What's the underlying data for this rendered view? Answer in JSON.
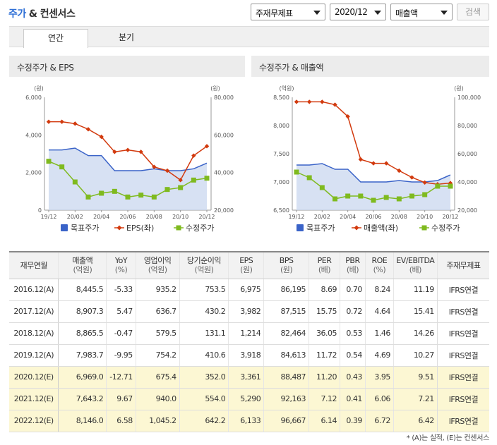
{
  "header": {
    "title_main": "주가",
    "title_rest": "& 컨센서스",
    "select_type": "주재무제표",
    "select_period": "2020/12",
    "select_metric": "매출액",
    "search_label": "검색"
  },
  "tabs": [
    {
      "label": "연간"
    },
    {
      "label": "분기"
    }
  ],
  "chart1": {
    "title": "수정주가 & EPS",
    "unit_left": "(원)",
    "unit_right": "(원)",
    "legend": [
      "목표주가",
      "EPS(좌)",
      "수정주가"
    ]
  },
  "chart2": {
    "title": "수정주가 & 매출액",
    "unit_left": "(억원)",
    "unit_right": "(원)",
    "legend": [
      "목표주가",
      "매출액(좌)",
      "수정주가"
    ]
  },
  "colors": {
    "target": "#3a63c8",
    "target_fill": "#c9d7ef",
    "eps": "#d23a0e",
    "price": "#7fba1f"
  },
  "chart_data": [
    {
      "type": "line",
      "title": "수정주가 & EPS",
      "x": [
        "19/12",
        "20/01",
        "20/02",
        "20/03",
        "20/04",
        "20/05",
        "20/06",
        "20/07",
        "20/08",
        "20/09",
        "20/10",
        "20/11",
        "20/12"
      ],
      "x_ticks": [
        "19/12",
        "20/02",
        "20/04",
        "20/06",
        "20/08",
        "20/10",
        "20/12"
      ],
      "y_left": {
        "unit": "(원)",
        "ticks": [
          "6,000",
          "4,000",
          "2,000",
          "0"
        ],
        "range": [
          0,
          6000
        ]
      },
      "y_right": {
        "unit": "(원)",
        "ticks": [
          "80,000",
          "60,000",
          "40,000",
          "20,000"
        ],
        "range": [
          20000,
          80000
        ]
      },
      "series": [
        {
          "name": "목표주가",
          "axis": "right",
          "values": [
            52000,
            52000,
            53000,
            49000,
            49000,
            41000,
            41000,
            41000,
            42000,
            41000,
            41000,
            42000,
            45000
          ]
        },
        {
          "name": "EPS(좌)",
          "axis": "left",
          "values": [
            4700,
            4700,
            4600,
            4300,
            3900,
            3100,
            3200,
            3100,
            2300,
            2100,
            1600,
            2900,
            3400
          ]
        },
        {
          "name": "수정주가",
          "axis": "right",
          "values": [
            46000,
            43000,
            35000,
            27000,
            29000,
            30000,
            27000,
            28000,
            27000,
            31000,
            32000,
            36000,
            37000
          ]
        }
      ],
      "legend_position": "bottom"
    },
    {
      "type": "line",
      "title": "수정주가 & 매출액",
      "x": [
        "19/12",
        "20/01",
        "20/02",
        "20/03",
        "20/04",
        "20/05",
        "20/06",
        "20/07",
        "20/08",
        "20/09",
        "20/10",
        "20/11",
        "20/12"
      ],
      "x_ticks": [
        "19/12",
        "20/02",
        "20/04",
        "20/06",
        "20/08",
        "20/10",
        "20/12"
      ],
      "y_left": {
        "unit": "(억원)",
        "ticks": [
          "8,500",
          "8,000",
          "7,500",
          "7,000",
          "6,500"
        ],
        "range": [
          6500,
          8500
        ]
      },
      "y_right": {
        "unit": "(원)",
        "ticks": [
          "100,000",
          "80,000",
          "60,000",
          "40,000",
          "20,000"
        ],
        "range": [
          20000,
          100000
        ]
      },
      "series": [
        {
          "name": "목표주가",
          "axis": "right",
          "values": [
            52000,
            52000,
            53000,
            49000,
            49000,
            40000,
            40000,
            40000,
            41000,
            40000,
            40000,
            41000,
            45000
          ]
        },
        {
          "name": "매출액(좌)",
          "axis": "left",
          "values": [
            8420,
            8420,
            8420,
            8370,
            8160,
            7400,
            7330,
            7330,
            7200,
            7080,
            6990,
            6960,
            6980
          ]
        },
        {
          "name": "수정주가",
          "axis": "right",
          "values": [
            47000,
            43000,
            36000,
            28000,
            30000,
            30000,
            27000,
            29000,
            28000,
            30000,
            31000,
            37000,
            37000
          ]
        }
      ],
      "legend_position": "bottom"
    }
  ],
  "table": {
    "headers": [
      {
        "label": "재무연월",
        "unit": ""
      },
      {
        "label": "매출액",
        "unit": "(억원)"
      },
      {
        "label": "YoY",
        "unit": "(%)"
      },
      {
        "label": "영업이익",
        "unit": "(억원)"
      },
      {
        "label": "당기순이익",
        "unit": "(억원)"
      },
      {
        "label": "EPS",
        "unit": "(원)"
      },
      {
        "label": "BPS",
        "unit": "(원)"
      },
      {
        "label": "PER",
        "unit": "(배)"
      },
      {
        "label": "PBR",
        "unit": "(배)"
      },
      {
        "label": "ROE",
        "unit": "(%)"
      },
      {
        "label": "EV/EBITDA",
        "unit": "(배)"
      },
      {
        "label": "주재무제표",
        "unit": ""
      }
    ],
    "rows": [
      {
        "estimate": false,
        "cells": [
          "2016.12(A)",
          "8,445.5",
          "-5.33",
          "935.2",
          "753.5",
          "6,975",
          "86,195",
          "8.69",
          "0.70",
          "8.24",
          "11.19",
          "IFRS연결"
        ]
      },
      {
        "estimate": false,
        "cells": [
          "2017.12(A)",
          "8,907.3",
          "5.47",
          "636.7",
          "430.2",
          "3,982",
          "87,515",
          "15.75",
          "0.72",
          "4.64",
          "15.41",
          "IFRS연결"
        ]
      },
      {
        "estimate": false,
        "cells": [
          "2018.12(A)",
          "8,865.5",
          "-0.47",
          "579.5",
          "131.1",
          "1,214",
          "82,464",
          "36.05",
          "0.53",
          "1.46",
          "14.26",
          "IFRS연결"
        ]
      },
      {
        "estimate": false,
        "cells": [
          "2019.12(A)",
          "7,983.7",
          "-9.95",
          "754.2",
          "410.6",
          "3,918",
          "84,613",
          "11.72",
          "0.54",
          "4.69",
          "10.27",
          "IFRS연결"
        ]
      },
      {
        "estimate": true,
        "cells": [
          "2020.12(E)",
          "6,969.0",
          "-12.71",
          "675.4",
          "352.0",
          "3,361",
          "88,487",
          "11.20",
          "0.43",
          "3.95",
          "9.51",
          "IFRS연결"
        ]
      },
      {
        "estimate": true,
        "cells": [
          "2021.12(E)",
          "7,643.2",
          "9.67",
          "940.0",
          "554.0",
          "5,290",
          "92,163",
          "7.12",
          "0.41",
          "6.06",
          "7.21",
          "IFRS연결"
        ]
      },
      {
        "estimate": true,
        "cells": [
          "2022.12(E)",
          "8,146.0",
          "6.58",
          "1,045.2",
          "642.2",
          "6,133",
          "96,667",
          "6.14",
          "0.39",
          "6.72",
          "6.42",
          "IFRS연결"
        ]
      }
    ]
  },
  "footnote": "* (A)는 실적, (E)는 컨센서스"
}
